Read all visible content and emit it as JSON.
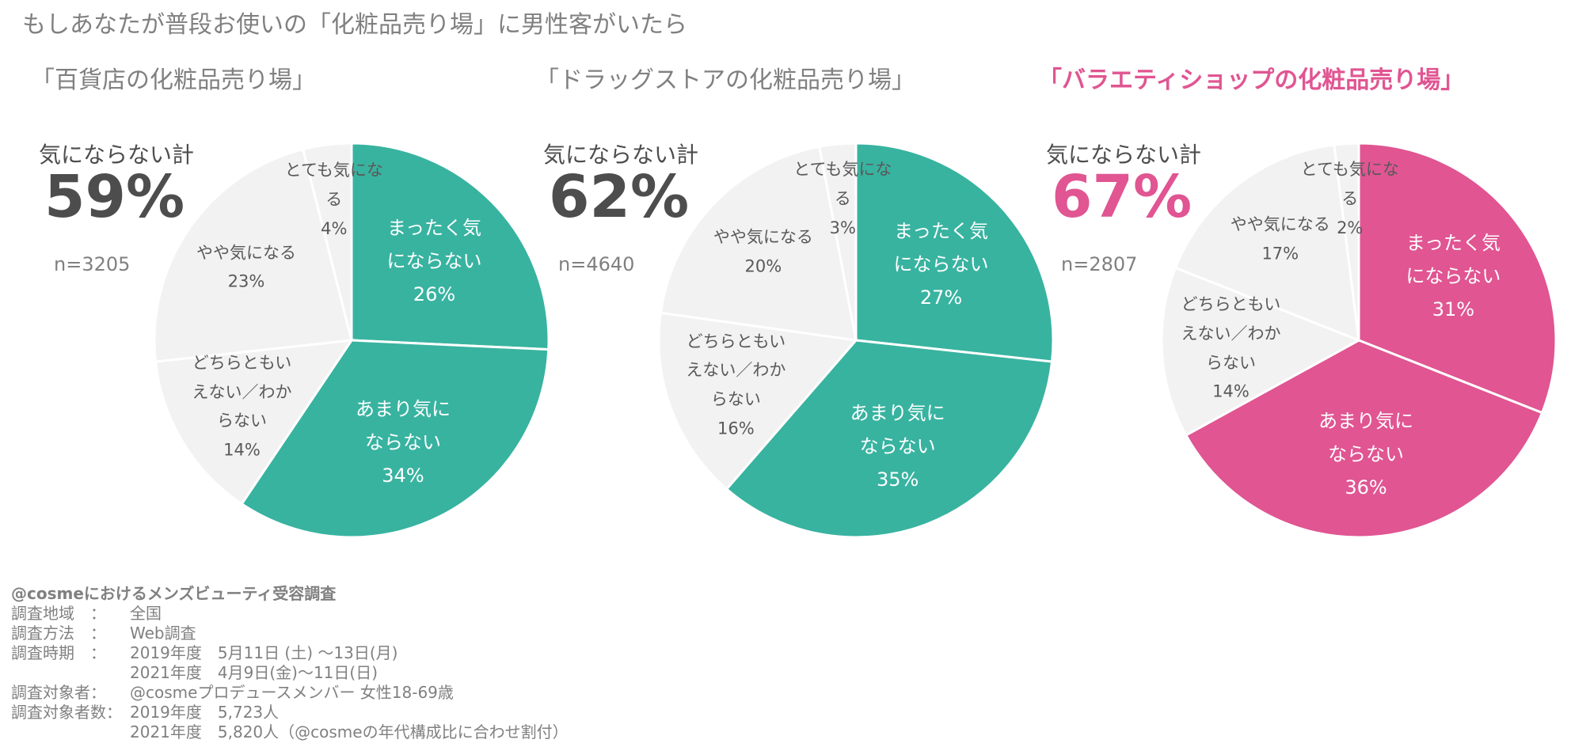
{
  "title": "もしあなたが普段お使いの「化粧品売り場」に男性客がいたら",
  "chart_data": [
    {
      "type": "pie",
      "title": "「百貨店の化粧品売り場」",
      "title_color": "#808080",
      "summary_title": "気にならない計",
      "summary_label": "59%",
      "summary_color": "#4d4d4d",
      "n_label": "n=3205",
      "categories": [
        "まったく気にならない",
        "あまり気にならない",
        "どちらともいえない／わからない",
        "やや気になる",
        "とても気になる"
      ],
      "values": [
        26,
        34,
        14,
        23,
        4
      ],
      "value_labels": [
        "26%",
        "34%",
        "14%",
        "23%",
        "4%"
      ],
      "colors": [
        "#38b3a0",
        "#38b3a0",
        "#f2f2f2",
        "#f2f2f2",
        "#f2f2f2"
      ]
    },
    {
      "type": "pie",
      "title": "「ドラッグストアの化粧品売り場」",
      "title_color": "#808080",
      "summary_title": "気にならない計",
      "summary_label": "62%",
      "summary_color": "#4d4d4d",
      "n_label": "n=4640",
      "categories": [
        "まったく気にならない",
        "あまり気にならない",
        "どちらともいえない／わからない",
        "やや気になる",
        "とても気になる"
      ],
      "values": [
        27,
        35,
        16,
        20,
        3
      ],
      "value_labels": [
        "27%",
        "35%",
        "16%",
        "20%",
        "3%"
      ],
      "colors": [
        "#38b3a0",
        "#38b3a0",
        "#f2f2f2",
        "#f2f2f2",
        "#f2f2f2"
      ]
    },
    {
      "type": "pie",
      "title": "「バラエティショップの化粧品売り場」",
      "title_color": "#e05592",
      "summary_title": "気にならない計",
      "summary_label": "67%",
      "summary_color": "#e05592",
      "n_label": "n=2807",
      "categories": [
        "まったく気にならない",
        "あまり気にならない",
        "どちらともいえない／わからない",
        "やや気になる",
        "とても気になる"
      ],
      "values": [
        31,
        36,
        14,
        17,
        2
      ],
      "value_labels": [
        "31%",
        "36%",
        "14%",
        "17%",
        "2%"
      ],
      "colors": [
        "#e05592",
        "#e05592",
        "#f2f2f2",
        "#f2f2f2",
        "#f2f2f2"
      ]
    }
  ],
  "notes": {
    "heading": "@cosmeにおけるメンズビューティ受容調査",
    "rows": [
      [
        "調査地域　：",
        "全国"
      ],
      [
        "調査方法　：",
        "Web調査"
      ],
      [
        "調査時期　：",
        "2019年度　5月11日 (土) ～13日(月)"
      ],
      [
        null,
        "2021年度　4月9日(金)～11日(日)"
      ],
      [
        "調査対象者：",
        "@cosmeプロデュースメンバー 女性18-69歳"
      ],
      [
        "調査対象者数：",
        "2019年度　5,723人"
      ],
      [
        null,
        "2021年度　5,820人（@cosmeの年代構成比に合わせ割付）"
      ]
    ]
  }
}
